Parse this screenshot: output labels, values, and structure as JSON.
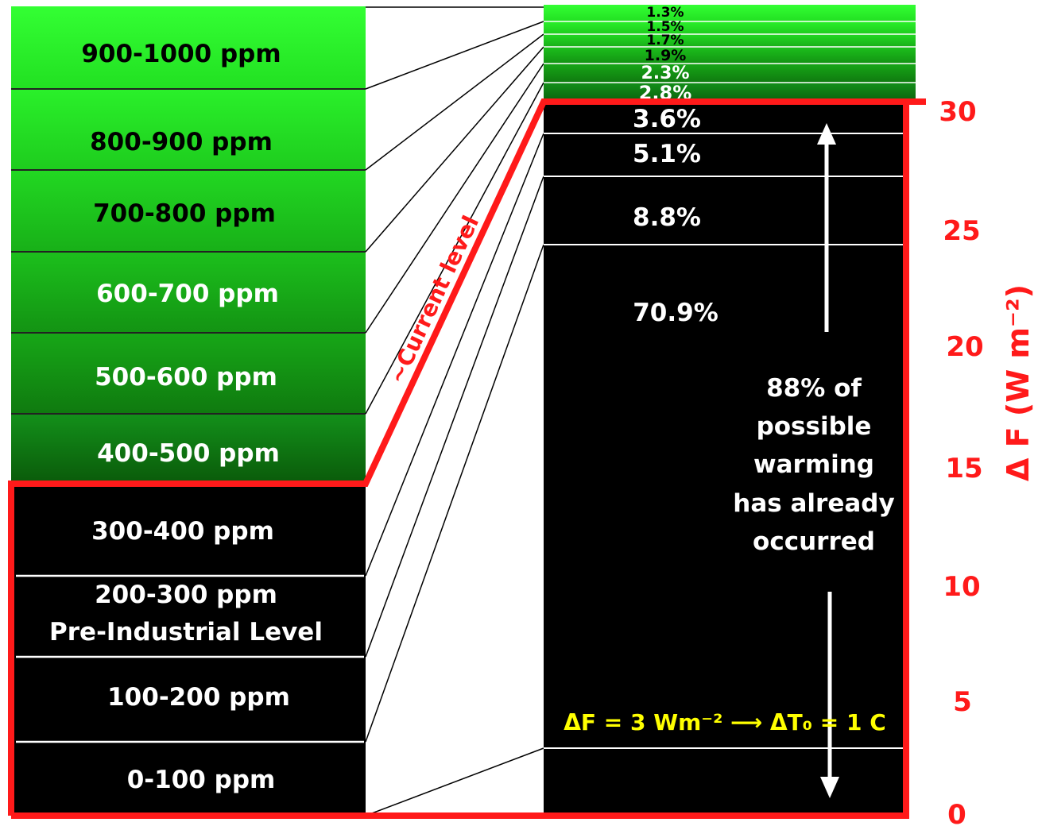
{
  "left_column": {
    "bins": [
      {
        "label": "900-1000 ppm",
        "fill": "#2cff2c",
        "text_color": "#111111"
      },
      {
        "label": "800-900 ppm",
        "fill": "#25e025",
        "text_color": "#111111"
      },
      {
        "label": "700-800 ppm",
        "fill": "#1ec21e",
        "text_color": "#111111"
      },
      {
        "label": "600-700 ppm",
        "fill": "#19a019",
        "text_color": "#ffffff"
      },
      {
        "label": "500-600 ppm",
        "fill": "#148214",
        "text_color": "#ffffff"
      },
      {
        "label": "400-500 ppm",
        "fill": "#0e6a0e",
        "text_color": "#ffffff"
      },
      {
        "label": "300-400 ppm",
        "fill": "#000000",
        "text_color": "#ffffff"
      },
      {
        "label": "200-300 ppm",
        "label2": "Pre-Industrial Level",
        "fill": "#000000",
        "text_color": "#ffffff"
      },
      {
        "label": "100-200 ppm",
        "fill": "#000000",
        "text_color": "#ffffff"
      },
      {
        "label": "0-100 ppm",
        "fill": "#000000",
        "text_color": "#ffffff"
      }
    ]
  },
  "right_column": {
    "percentages": [
      "1.3%",
      "1.5%",
      "1.7%",
      "1.9%",
      "2.3%",
      "2.8%",
      "3.6%",
      "5.1%",
      "8.8%",
      "70.9%"
    ],
    "strip_colors": [
      "#2cff2c",
      "#25e025",
      "#1ec21e",
      "#19a019",
      "#148214",
      "#0e6a0e"
    ]
  },
  "current_level_label": "~Current level",
  "annotation": {
    "lines": [
      "88% of",
      "possible",
      "warming",
      "has already",
      "occurred"
    ]
  },
  "formula": "ΔF = 3 Wm⁻² ⟶ ΔT₀ = 1 C",
  "axis": {
    "label": "Δ F (W m⁻²)",
    "ticks": [
      "0",
      "5",
      "10",
      "15",
      "20",
      "25",
      "30"
    ],
    "ylim": [
      0,
      30
    ],
    "color": "#ff1a1a"
  },
  "colors": {
    "highlight": "#ff1a1a",
    "formula": "#ffff00",
    "dark": "#000000",
    "lightest_green": "#2cff2c"
  }
}
